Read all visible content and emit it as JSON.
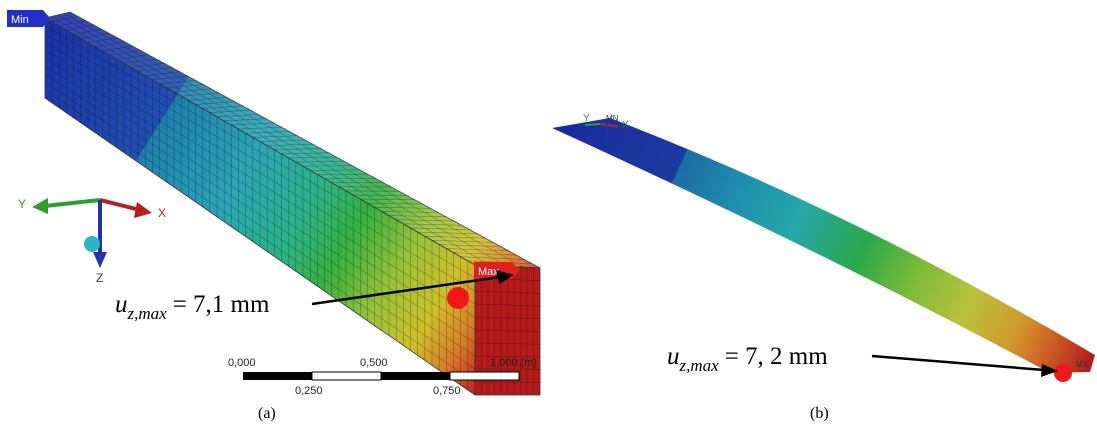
{
  "panels": [
    {
      "label": "(a)",
      "min_tag": "Min",
      "max_tag": "Max",
      "axes": {
        "x": "X",
        "y": "Y",
        "z": "Z"
      },
      "annotation": {
        "symbol": "u",
        "subscript": "z,max",
        "text": "= 7,1 mm"
      },
      "scale_bar": {
        "top": [
          "0,000",
          "0,500",
          "1,000 (m)"
        ],
        "bottom": [
          "0,250",
          "0,750"
        ]
      }
    },
    {
      "label": "(b)",
      "min_tag": "MN",
      "max_tag": "MX",
      "axes": {
        "x": "X",
        "y": "Y",
        "z": "Z"
      },
      "annotation": {
        "symbol": "u",
        "subscript": "z,max",
        "text": "= 7, 2 mm"
      }
    }
  ]
}
